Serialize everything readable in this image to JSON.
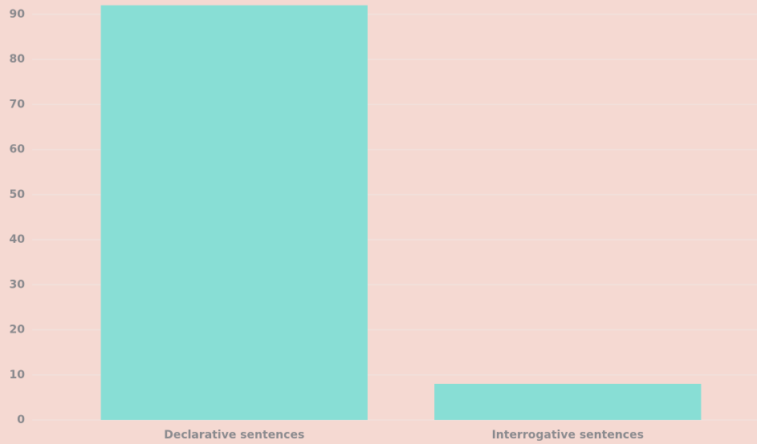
{
  "chart_data": {
    "type": "bar",
    "categories": [
      "Declarative sentences",
      "Interrogative sentences"
    ],
    "values": [
      92,
      8
    ],
    "color": "#88ded5",
    "ylim": [
      0,
      93
    ],
    "yticks": [
      0,
      10,
      20,
      30,
      40,
      50,
      60,
      70,
      80,
      90
    ],
    "grid": true
  }
}
